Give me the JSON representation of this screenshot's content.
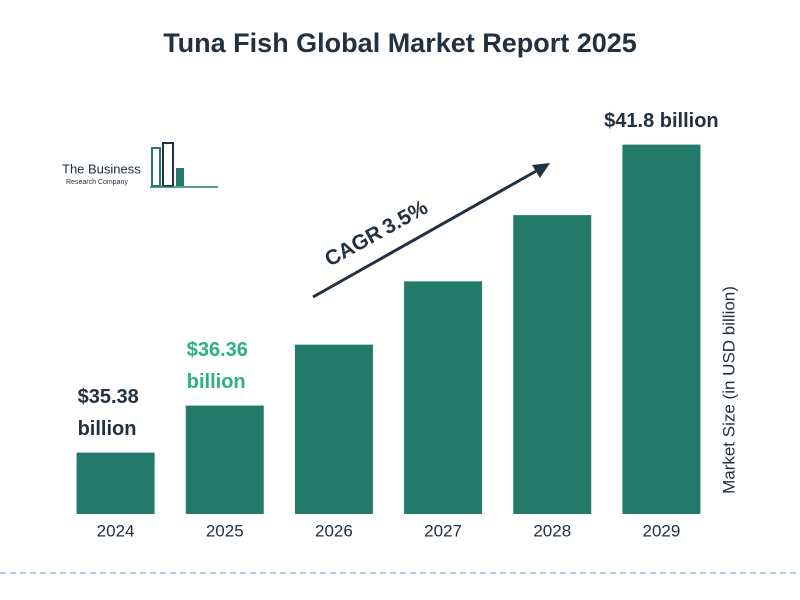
{
  "logo": {
    "line1": "The Business",
    "line2": "Research Company"
  },
  "chart_data": {
    "type": "bar",
    "title": "Tuna Fish Global Market Report 2025",
    "categories": [
      "2024",
      "2025",
      "2026",
      "2027",
      "2028",
      "2029"
    ],
    "values": [
      35.38,
      36.36,
      37.63,
      38.95,
      40.33,
      41.8
    ],
    "value_labels": [
      "$35.38 billion",
      "$36.36 billion",
      null,
      null,
      null,
      "$41.8 billion"
    ],
    "value_label_colors": [
      "#22313f",
      "#2bb07f",
      null,
      null,
      null,
      "#22313f"
    ],
    "color": "#237a6b",
    "y_axis_label": "Market Size (in USD billion)",
    "ylim": [
      34.1,
      42.5
    ],
    "annotation": {
      "text": "CAGR",
      "value": "3.5%",
      "value_color": "#2bb07f"
    }
  }
}
